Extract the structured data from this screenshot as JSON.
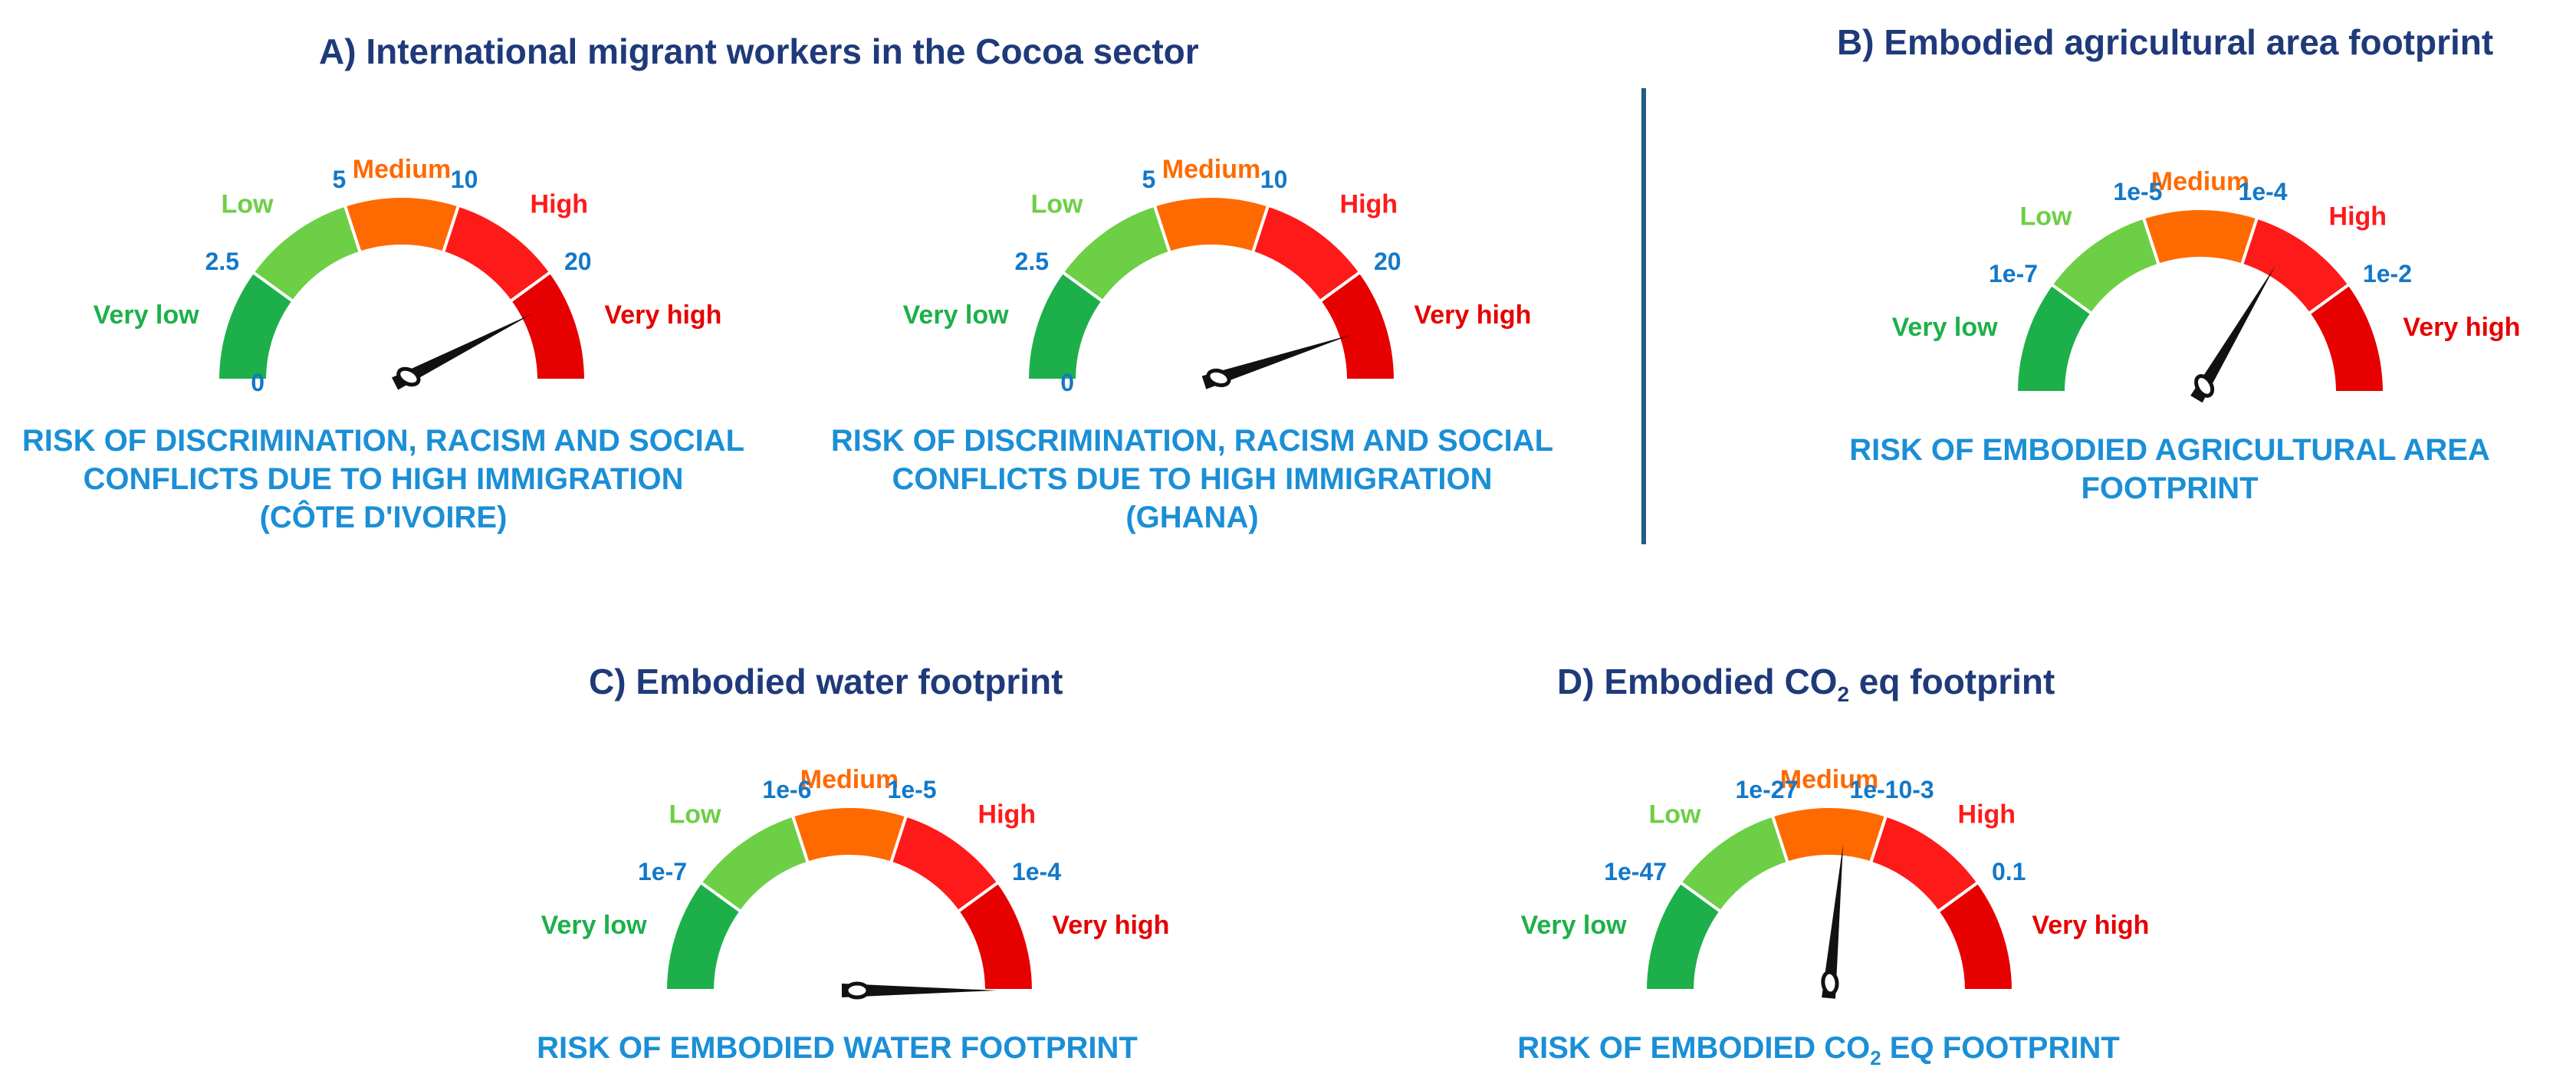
{
  "colors": {
    "very_low": "#1db04a",
    "low": "#6dcf45",
    "medium": "#ff6a00",
    "high": "#ff1a1a",
    "very_high": "#e60000",
    "tick_label": "#1478c8",
    "title": "#1f3a7a",
    "caption": "#1b8fd6",
    "needle": "#111111",
    "divider": "#215c84"
  },
  "panels": {
    "a": {
      "title": "A) International migrant workers in the Cocoa sector",
      "caption_civ": [
        "RISK OF DISCRIMINATION, RACISM AND SOCIAL",
        "CONFLICTS DUE TO HIGH IMMIGRATION",
        "(CÔTE D'IVOIRE)"
      ],
      "caption_gha": [
        "RISK OF DISCRIMINATION, RACISM AND SOCIAL",
        "CONFLICTS DUE TO HIGH IMMIGRATION",
        "(GHANA)"
      ]
    },
    "b": {
      "title": "B) Embodied agricultural area footprint",
      "caption": [
        "RISK OF EMBODIED AGRICULTURAL AREA",
        "FOOTPRINT"
      ]
    },
    "c": {
      "title": "C) Embodied water footprint",
      "caption": [
        "RISK OF EMBODIED WATER FOOTPRINT"
      ]
    },
    "d": {
      "title_prefix": "D) Embodied CO",
      "title_sub": "2",
      "title_suffix": " eq footprint",
      "caption_prefix": "RISK OF EMBODIED CO",
      "caption_sub": "2",
      "caption_suffix": " EQ FOOTPRINT"
    }
  },
  "chart_data": [
    {
      "id": "gauge-civ",
      "type": "gauge",
      "categories": [
        "Very low",
        "Low",
        "Medium",
        "High",
        "Very high"
      ],
      "thresholds": [
        "0",
        "2.5",
        "5",
        "10",
        "20"
      ],
      "needle_fraction": 0.85
    },
    {
      "id": "gauge-gha",
      "type": "gauge",
      "categories": [
        "Very low",
        "Low",
        "Medium",
        "High",
        "Very high"
      ],
      "thresholds": [
        "0",
        "2.5",
        "5",
        "10",
        "20"
      ],
      "needle_fraction": 0.9
    },
    {
      "id": "gauge-agri",
      "type": "gauge",
      "categories": [
        "Very low",
        "Low",
        "Medium",
        "High",
        "Very high"
      ],
      "thresholds": [
        "1e-7",
        "1e-5",
        "1e-4",
        "1e-2"
      ],
      "needle_fraction": 0.67
    },
    {
      "id": "gauge-water",
      "type": "gauge",
      "categories": [
        "Very low",
        "Low",
        "Medium",
        "High",
        "Very high"
      ],
      "thresholds": [
        "1e-7",
        "1e-6",
        "1e-5",
        "1e-4"
      ],
      "needle_fraction": 1.0
    },
    {
      "id": "gauge-co2",
      "type": "gauge",
      "categories": [
        "Very low",
        "Low",
        "Medium",
        "High",
        "Very high"
      ],
      "thresholds": [
        "1e-47",
        "1e-27",
        "1e-10-3",
        "0.1"
      ],
      "needle_fraction": 0.53
    }
  ]
}
